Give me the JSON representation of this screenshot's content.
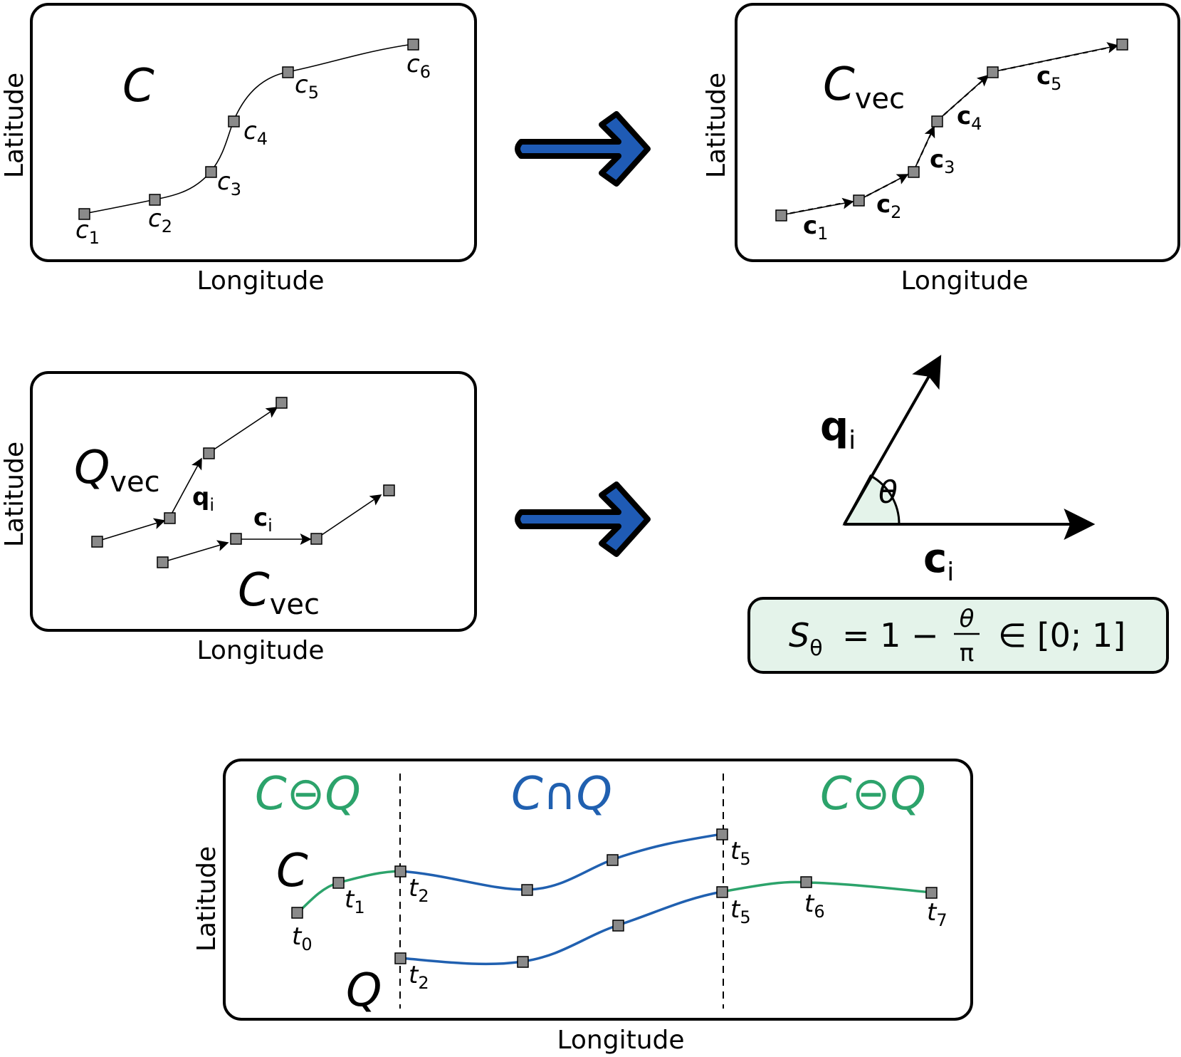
{
  "axes": {
    "x_label": "Longitude",
    "y_label": "Latitude"
  },
  "panel1": {
    "title": "C",
    "points": [
      {
        "base": "c",
        "sub": "1"
      },
      {
        "base": "c",
        "sub": "2"
      },
      {
        "base": "c",
        "sub": "3"
      },
      {
        "base": "c",
        "sub": "4"
      },
      {
        "base": "c",
        "sub": "5"
      },
      {
        "base": "c",
        "sub": "6"
      }
    ]
  },
  "panel2": {
    "title": "C",
    "title_sub": "vec",
    "vectors": [
      {
        "base": "c",
        "sub": "1"
      },
      {
        "base": "c",
        "sub": "2"
      },
      {
        "base": "c",
        "sub": "3"
      },
      {
        "base": "c",
        "sub": "4"
      },
      {
        "base": "c",
        "sub": "5"
      }
    ]
  },
  "panel3": {
    "q_label": "Q",
    "q_sub": "vec",
    "c_label": "C",
    "c_sub": "vec",
    "qi": {
      "base": "q",
      "sub": "i"
    },
    "ci": {
      "base": "c",
      "sub": "i"
    }
  },
  "panel4": {
    "qi": {
      "base": "q",
      "sub": "i"
    },
    "ci": {
      "base": "c",
      "sub": "i"
    },
    "theta": "θ",
    "formula": {
      "lhs": "S",
      "lhs_sub": "θ",
      "eq": "= 1 −",
      "num": "θ",
      "den": "π",
      "rest": "∈ [0; 1]"
    }
  },
  "panel5": {
    "region_left": "C⊖Q",
    "region_mid": "C∩Q",
    "region_right": "C⊖Q",
    "curve_c": "C",
    "curve_q": "Q",
    "c_points": [
      {
        "base": "t",
        "sub": "0"
      },
      {
        "base": "t",
        "sub": "1"
      },
      {
        "base": "t",
        "sub": "2"
      },
      {
        "base": "t",
        "sub": "5"
      }
    ],
    "q_points": [
      {
        "base": "t",
        "sub": "2"
      },
      {
        "base": "t",
        "sub": "5"
      },
      {
        "base": "t",
        "sub": "6"
      },
      {
        "base": "t",
        "sub": "7"
      }
    ]
  },
  "colors": {
    "green": "#2ca36b",
    "blue": "#2060b0",
    "arrow": "#1f5bb5",
    "formula_bg": "#e4f3ea"
  }
}
